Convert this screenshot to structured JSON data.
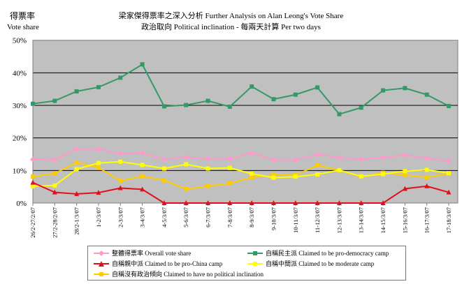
{
  "chart_data": {
    "type": "line",
    "title": "梁家傑得票率之深入分析 Further Analysis on Alan Leong's Vote Share",
    "subtitle": "政治取向 Political inclination - 每兩天計算 Per two days",
    "ylabel_zh": "得票率",
    "ylabel": "Vote share",
    "xlabel": "",
    "ylim": [
      0,
      50
    ],
    "yticks": [
      "0%",
      "10%",
      "20%",
      "30%",
      "40%",
      "50%"
    ],
    "grid": true,
    "legend_position": "bottom",
    "categories": [
      "26/2-27/2/07",
      "27/2-28/2/07",
      "28/2-1/3/07",
      "1-2/3/07",
      "2-3/3/07",
      "3-4/3/07",
      "4-5/3/07",
      "5-6/3/07",
      "6-7/3/07",
      "7-8/3/07",
      "8-9/3/07",
      "9-10/3/07",
      "10-11/3/07",
      "11-12/3/07",
      "12-13/3/07",
      "13-14/3/07",
      "14-15/3/07",
      "15-16/3/07",
      "16-17/3/07",
      "17-18/3/07"
    ],
    "series": [
      {
        "name": "整體得票率 Overall vote share",
        "color": "#FF99CC",
        "marker": "diamond",
        "values": [
          13.4,
          13.3,
          16.6,
          16.5,
          15.2,
          15.4,
          13.4,
          14.1,
          13.6,
          13.6,
          15.4,
          13.2,
          13.2,
          14.9,
          14.0,
          13.4,
          14.0,
          14.7,
          13.8,
          12.9
        ]
      },
      {
        "name": "自稱民主派 Claimed to be pro-democracy camp",
        "color": "#339966",
        "marker": "square",
        "values": [
          30.5,
          31.4,
          34.3,
          35.6,
          38.5,
          42.6,
          29.7,
          30.1,
          31.4,
          29.6,
          35.8,
          31.9,
          33.3,
          35.5,
          27.3,
          29.3,
          34.6,
          35.3,
          33.3,
          29.8
        ]
      },
      {
        "name": "自稱親中派 Claimed to be pro-China camp",
        "color": "#E0101A",
        "marker": "triangle",
        "values": [
          6.3,
          3.3,
          2.8,
          3.2,
          4.6,
          4.2,
          0,
          0,
          0,
          0,
          0,
          0,
          0,
          0,
          0,
          0,
          0,
          4.4,
          5.2,
          3.3
        ]
      },
      {
        "name": "自稱中間派 Claimed to be moderate camp",
        "color": "#FFFF00",
        "marker": "square",
        "values": [
          5.2,
          5.4,
          10.4,
          12.3,
          12.7,
          11.7,
          10.6,
          11.9,
          10.6,
          10.8,
          9.0,
          7.8,
          8.1,
          8.8,
          10.1,
          8.2,
          8.9,
          9.8,
          10.2,
          9.2
        ]
      },
      {
        "name": "自稱沒有政治傾向 Claimed to have no political inclination",
        "color": "#FFCC00",
        "marker": "square",
        "values": [
          8.1,
          9.1,
          12.4,
          10.9,
          6.8,
          8.2,
          7.0,
          4.3,
          5.2,
          6.0,
          7.9,
          8.6,
          8.6,
          11.6,
          10.1,
          8.1,
          9.3,
          8.6,
          7.9,
          9.0
        ]
      }
    ],
    "plot_background": "#C0C0C0"
  }
}
